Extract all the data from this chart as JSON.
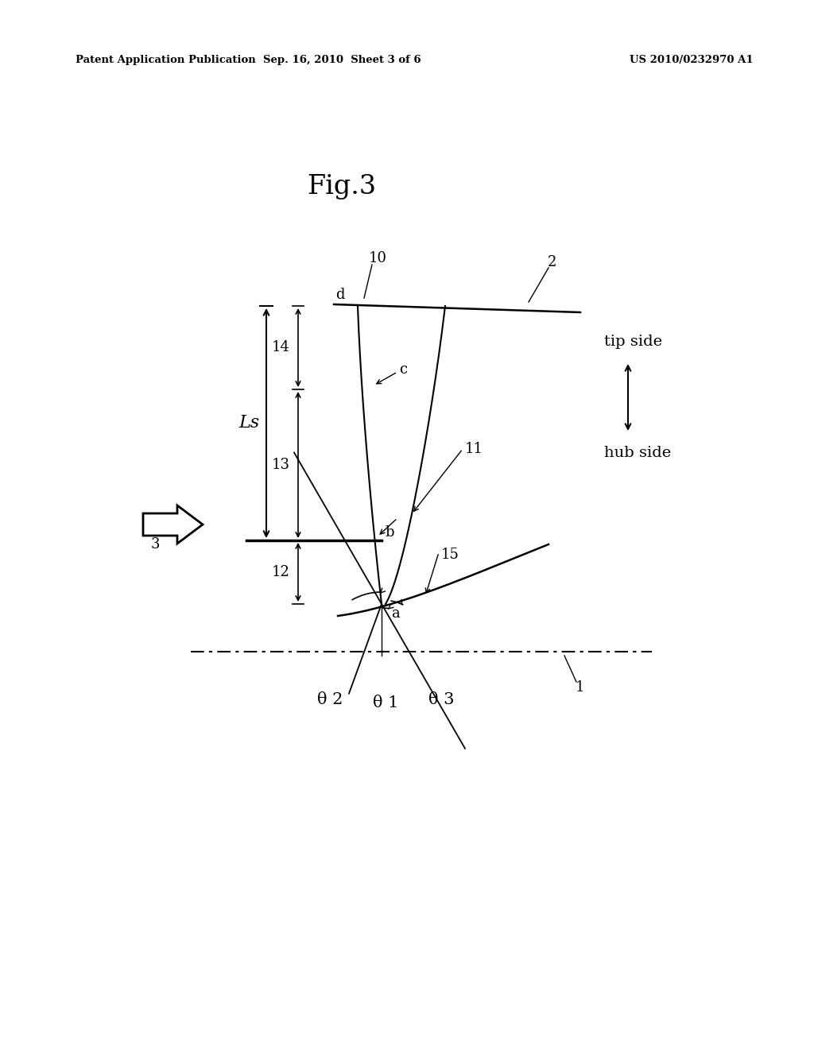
{
  "header_left": "Patent Application Publication",
  "header_center": "Sep. 16, 2010  Sheet 3 of 6",
  "header_right": "US 2010/0232970 A1",
  "bg_color": "#ffffff",
  "text_color": "#000000",
  "line_color": "#000000",
  "fig_label": "Fig.3",
  "labels": {
    "tip_side": "tip side",
    "hub_side": "hub side",
    "Ls": "Ls",
    "num_1": "1",
    "num_2": "2",
    "num_3": "3",
    "num_10": "10",
    "num_11": "11",
    "num_12": "12",
    "num_13": "13",
    "num_14": "14",
    "num_15": "15",
    "pt_a": "a",
    "pt_b": "b",
    "pt_c": "c",
    "pt_d": "d",
    "theta1": "θ 1",
    "theta2": "θ 2",
    "theta3": "θ 3"
  }
}
